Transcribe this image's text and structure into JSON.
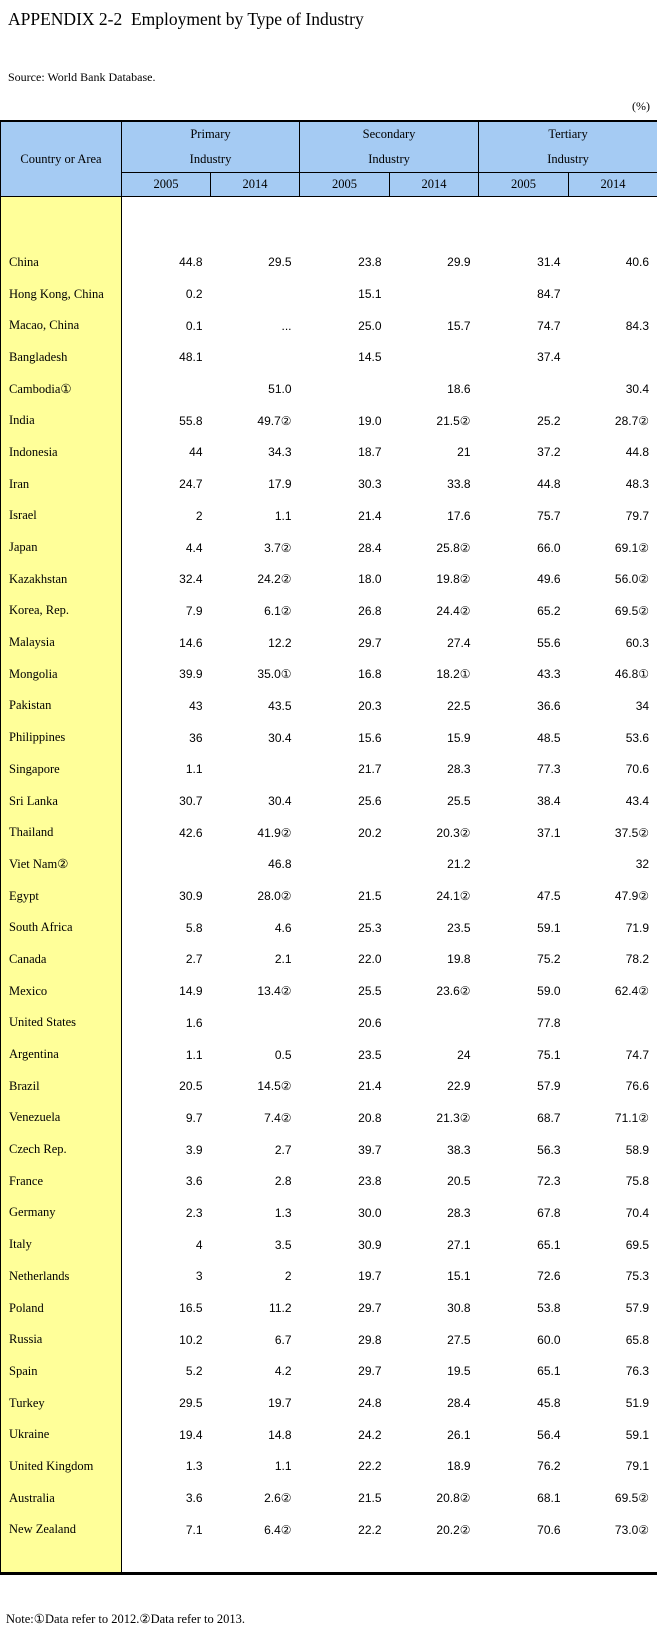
{
  "page": {
    "title": "APPENDIX 2-2  Employment by Type of Industry",
    "source": "Source: World Bank Database.",
    "unit_label": "(%)",
    "note": "Note:①Data refer to 2012.②Data refer to 2013."
  },
  "table": {
    "corner_header": "Country or Area",
    "groups": [
      {
        "label": "Primary\nIndustry"
      },
      {
        "label": "Secondary\nIndustry"
      },
      {
        "label": "Tertiary\nIndustry"
      }
    ],
    "year_headers": [
      "2005",
      "2014",
      "2005",
      "2014",
      "2005",
      "2014"
    ],
    "colors": {
      "header_bg": "#A5CBF3",
      "country_bg": "#FFFF99",
      "border": "#000000"
    },
    "rows": [
      {
        "country": "China",
        "values": [
          "44.8",
          "29.5",
          "23.8",
          "29.9",
          "31.4",
          "40.6"
        ]
      },
      {
        "country": "Hong Kong, China",
        "values": [
          "0.2",
          "",
          "15.1",
          "",
          "84.7",
          ""
        ]
      },
      {
        "country": "Macao, China",
        "values": [
          "0.1",
          "...",
          "25.0",
          "15.7",
          "74.7",
          "84.3"
        ]
      },
      {
        "country": "Bangladesh",
        "values": [
          "48.1",
          "",
          "14.5",
          "",
          "37.4",
          ""
        ]
      },
      {
        "country": "Cambodia①",
        "values": [
          "",
          "51.0",
          "",
          "18.6",
          "",
          "30.4"
        ]
      },
      {
        "country": "India",
        "values": [
          "55.8",
          "49.7②",
          "19.0",
          "21.5②",
          "25.2",
          "28.7②"
        ]
      },
      {
        "country": "Indonesia",
        "values": [
          "44",
          "34.3",
          "18.7",
          "21",
          "37.2",
          "44.8"
        ]
      },
      {
        "country": "Iran",
        "values": [
          "24.7",
          "17.9",
          "30.3",
          "33.8",
          "44.8",
          "48.3"
        ]
      },
      {
        "country": "Israel",
        "values": [
          "2",
          "1.1",
          "21.4",
          "17.6",
          "75.7",
          "79.7"
        ]
      },
      {
        "country": "Japan",
        "values": [
          "4.4",
          "3.7②",
          "28.4",
          "25.8②",
          "66.0",
          "69.1②"
        ]
      },
      {
        "country": "Kazakhstan",
        "values": [
          "32.4",
          "24.2②",
          "18.0",
          "19.8②",
          "49.6",
          "56.0②"
        ]
      },
      {
        "country": "Korea, Rep.",
        "values": [
          "7.9",
          "6.1②",
          "26.8",
          "24.4②",
          "65.2",
          "69.5②"
        ]
      },
      {
        "country": "Malaysia",
        "values": [
          "14.6",
          "12.2",
          "29.7",
          "27.4",
          "55.6",
          "60.3"
        ]
      },
      {
        "country": "Mongolia",
        "values": [
          "39.9",
          "35.0①",
          "16.8",
          "18.2①",
          "43.3",
          "46.8①"
        ]
      },
      {
        "country": "Pakistan",
        "values": [
          "43",
          "43.5",
          "20.3",
          "22.5",
          "36.6",
          "34"
        ]
      },
      {
        "country": "Philippines",
        "values": [
          "36",
          "30.4",
          "15.6",
          "15.9",
          "48.5",
          "53.6"
        ]
      },
      {
        "country": "Singapore",
        "values": [
          "1.1",
          "",
          "21.7",
          "28.3",
          "77.3",
          "70.6"
        ]
      },
      {
        "country": "Sri Lanka",
        "values": [
          "30.7",
          "30.4",
          "25.6",
          "25.5",
          "38.4",
          "43.4"
        ]
      },
      {
        "country": "Thailand",
        "values": [
          "42.6",
          "41.9②",
          "20.2",
          "20.3②",
          "37.1",
          "37.5②"
        ]
      },
      {
        "country": "Viet Nam②",
        "values": [
          "",
          "46.8",
          "",
          "21.2",
          "",
          "32"
        ]
      },
      {
        "country": "Egypt",
        "values": [
          "30.9",
          "28.0②",
          "21.5",
          "24.1②",
          "47.5",
          "47.9②"
        ]
      },
      {
        "country": "South Africa",
        "values": [
          "5.8",
          "4.6",
          "25.3",
          "23.5",
          "59.1",
          "71.9"
        ]
      },
      {
        "country": "Canada",
        "values": [
          "2.7",
          "2.1",
          "22.0",
          "19.8",
          "75.2",
          "78.2"
        ]
      },
      {
        "country": "Mexico",
        "values": [
          "14.9",
          "13.4②",
          "25.5",
          "23.6②",
          "59.0",
          "62.4②"
        ]
      },
      {
        "country": "United States",
        "values": [
          "1.6",
          "",
          "20.6",
          "",
          "77.8",
          ""
        ]
      },
      {
        "country": "Argentina",
        "values": [
          "1.1",
          "0.5",
          "23.5",
          "24",
          "75.1",
          "74.7"
        ]
      },
      {
        "country": "Brazil",
        "values": [
          "20.5",
          "14.5②",
          "21.4",
          "22.9",
          "57.9",
          "76.6"
        ]
      },
      {
        "country": "Venezuela",
        "values": [
          "9.7",
          "7.4②",
          "20.8",
          "21.3②",
          "68.7",
          "71.1②"
        ]
      },
      {
        "country": "Czech Rep.",
        "values": [
          "3.9",
          "2.7",
          "39.7",
          "38.3",
          "56.3",
          "58.9"
        ]
      },
      {
        "country": "France",
        "values": [
          "3.6",
          "2.8",
          "23.8",
          "20.5",
          "72.3",
          "75.8"
        ]
      },
      {
        "country": "Germany",
        "values": [
          "2.3",
          "1.3",
          "30.0",
          "28.3",
          "67.8",
          "70.4"
        ]
      },
      {
        "country": "Italy",
        "values": [
          "4",
          "3.5",
          "30.9",
          "27.1",
          "65.1",
          "69.5"
        ]
      },
      {
        "country": "Netherlands",
        "values": [
          "3",
          "2",
          "19.7",
          "15.1",
          "72.6",
          "75.3"
        ]
      },
      {
        "country": "Poland",
        "values": [
          "16.5",
          "11.2",
          "29.7",
          "30.8",
          "53.8",
          "57.9"
        ]
      },
      {
        "country": "Russia",
        "values": [
          "10.2",
          "6.7",
          "29.8",
          "27.5",
          "60.0",
          "65.8"
        ]
      },
      {
        "country": "Spain",
        "values": [
          "5.2",
          "4.2",
          "29.7",
          "19.5",
          "65.1",
          "76.3"
        ]
      },
      {
        "country": "Turkey",
        "values": [
          "29.5",
          "19.7",
          "24.8",
          "28.4",
          "45.8",
          "51.9"
        ]
      },
      {
        "country": "Ukraine",
        "values": [
          "19.4",
          "14.8",
          "24.2",
          "26.1",
          "56.4",
          "59.1"
        ]
      },
      {
        "country": "United Kingdom",
        "values": [
          "1.3",
          "1.1",
          "22.2",
          "18.9",
          "76.2",
          "79.1"
        ]
      },
      {
        "country": "Australia",
        "values": [
          "3.6",
          "2.6②",
          "21.5",
          "20.8②",
          "68.1",
          "69.5②"
        ]
      },
      {
        "country": "New Zealand",
        "values": [
          "7.1",
          "6.4②",
          "22.2",
          "20.2②",
          "70.6",
          "73.0②"
        ]
      }
    ]
  }
}
